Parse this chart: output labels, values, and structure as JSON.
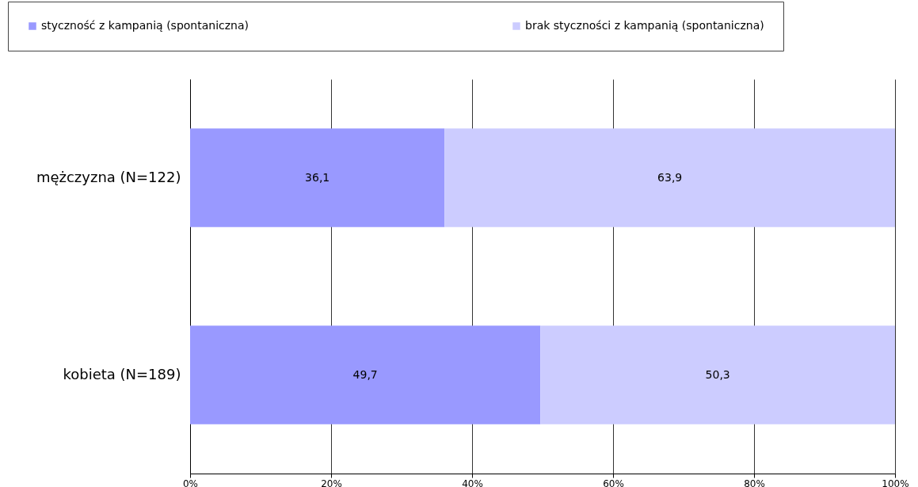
{
  "chart_data": {
    "type": "bar",
    "orientation": "horizontal",
    "stacked": true,
    "categories": [
      "mężczyzna (N=122)",
      "kobieta (N=189)"
    ],
    "series": [
      {
        "name": "styczność z kampanią (spontaniczna)",
        "color": "#9999ff",
        "values": [
          36.1,
          49.7
        ],
        "value_labels": [
          "36,1",
          "49,7"
        ]
      },
      {
        "name": "brak styczności z kampanią (spontaniczna)",
        "color": "#ccccff",
        "values": [
          63.9,
          50.3
        ],
        "value_labels": [
          "63,9",
          "50,3"
        ]
      }
    ],
    "xlim": [
      0,
      100
    ],
    "xticks": [
      {
        "value": 0,
        "label": "0%"
      },
      {
        "value": 20,
        "label": "20%"
      },
      {
        "value": 40,
        "label": "40%"
      },
      {
        "value": 60,
        "label": "60%"
      },
      {
        "value": 80,
        "label": "80%"
      },
      {
        "value": 100,
        "label": "100%"
      }
    ],
    "grid": "x",
    "legend": "top"
  }
}
